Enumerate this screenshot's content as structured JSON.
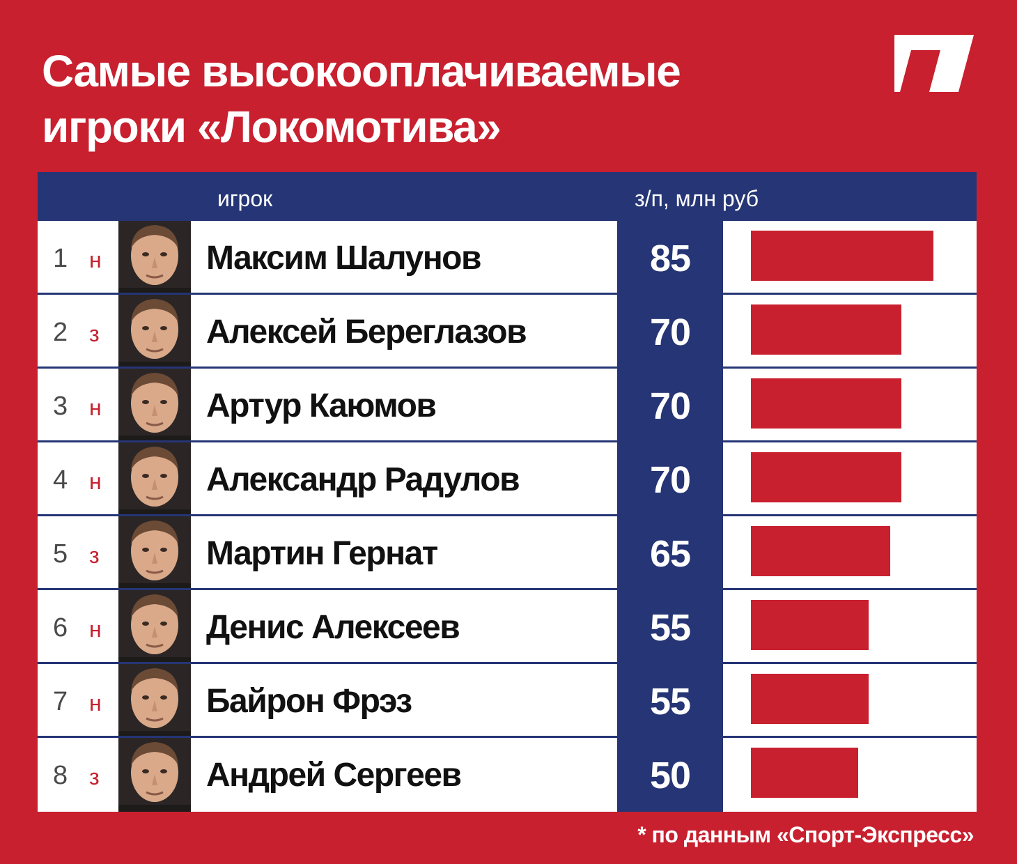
{
  "title": {
    "line1": "Самые высокооплачиваемые",
    "line2": "игроки «Локомотива»"
  },
  "logo_icon": "brand-slash-logo-icon",
  "colors": {
    "background": "#c8202f",
    "header": "#253575",
    "bar": "#c8202f",
    "position_letter": "#c8202f"
  },
  "chart_data": {
    "type": "bar",
    "columns": [
      "игрок",
      "з/п, млн руб"
    ],
    "categories": [
      "Максим Шалунов",
      "Алексей Береглазов",
      "Артур Каюмов",
      "Александр Радулов",
      "Мартин Гернат",
      "Денис Алексеев",
      "Байрон Фрэз",
      "Андрей Сергеев"
    ],
    "values": [
      85,
      70,
      70,
      70,
      65,
      55,
      55,
      50
    ],
    "ylim": [
      0,
      100
    ],
    "rows": [
      {
        "rank": "1",
        "position": "н",
        "name": "Максим Шалунов",
        "salary": "85",
        "value": 85
      },
      {
        "rank": "2",
        "position": "з",
        "name": "Алексей Береглазов",
        "salary": "70",
        "value": 70
      },
      {
        "rank": "3",
        "position": "н",
        "name": "Артур Каюмов",
        "salary": "70",
        "value": 70
      },
      {
        "rank": "4",
        "position": "н",
        "name": "Александр Радулов",
        "salary": "70",
        "value": 70
      },
      {
        "rank": "5",
        "position": "з",
        "name": "Мартин Гернат",
        "salary": "65",
        "value": 65
      },
      {
        "rank": "6",
        "position": "н",
        "name": "Денис Алексеев",
        "salary": "55",
        "value": 55
      },
      {
        "rank": "7",
        "position": "н",
        "name": "Байрон Фрэз",
        "salary": "55",
        "value": 55
      },
      {
        "rank": "8",
        "position": "з",
        "name": "Андрей Сергеев",
        "salary": "50",
        "value": 50
      }
    ]
  },
  "footnote": "* по данным «Спорт-Экспресс»"
}
